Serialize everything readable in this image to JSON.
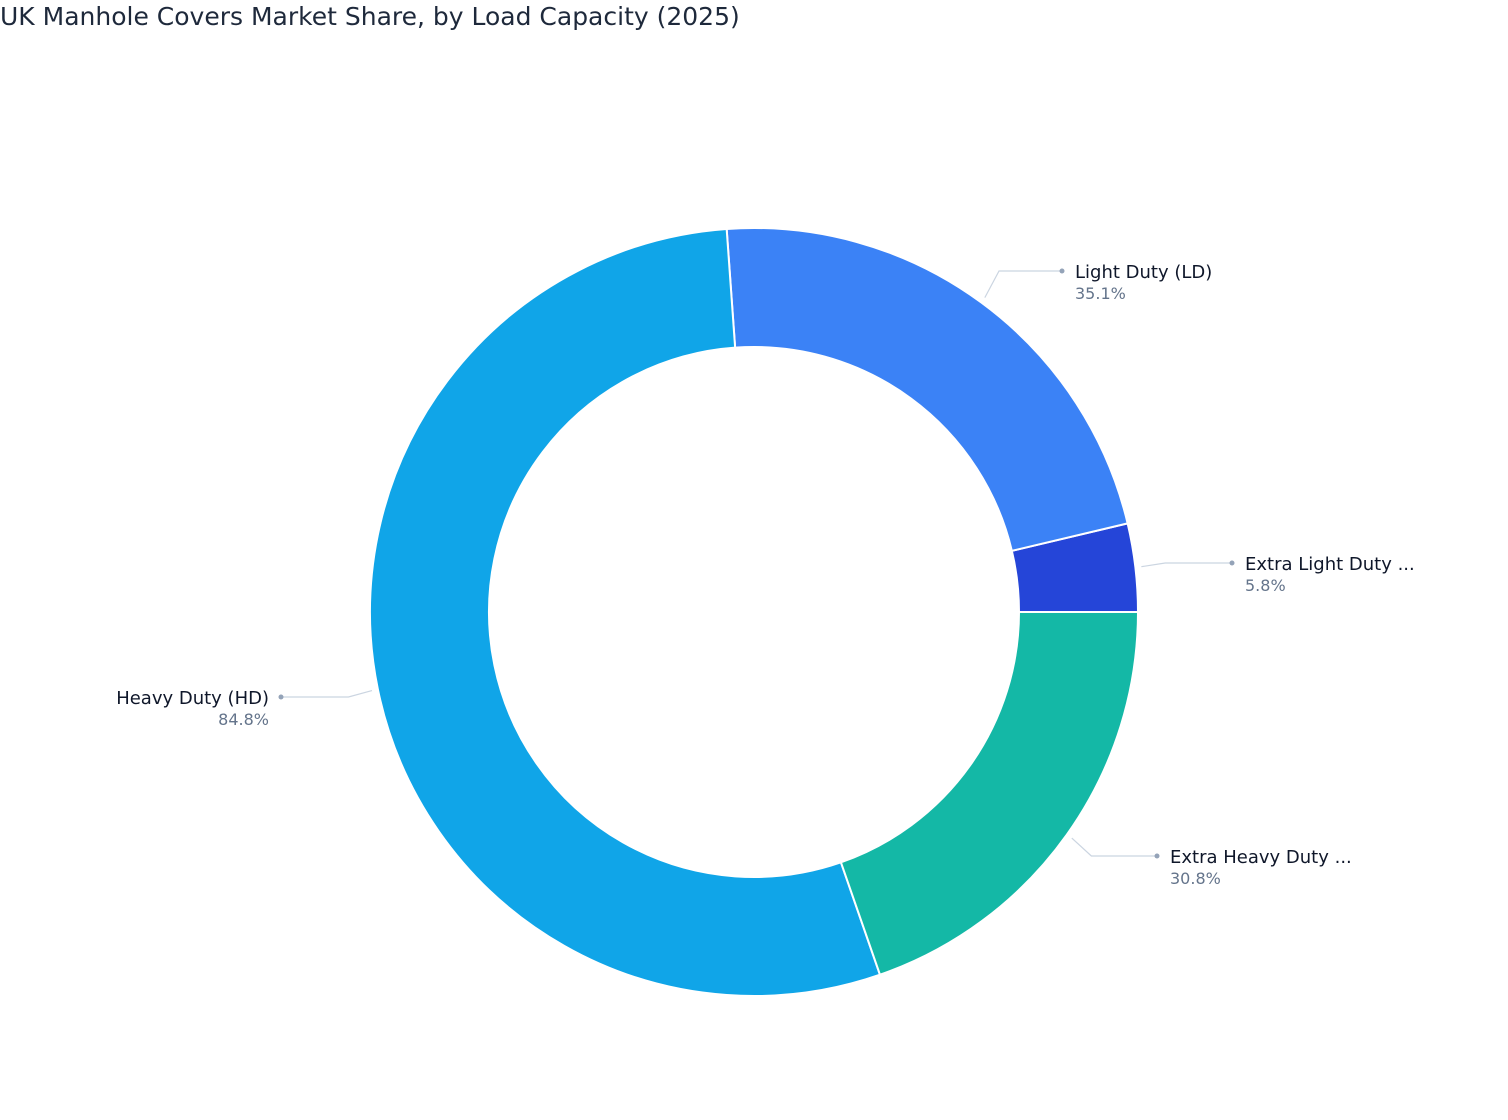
{
  "chart_data": {
    "type": "pie",
    "donut": true,
    "title": "UK Manhole Covers Market Share, by Load Capacity (2025)",
    "slices": [
      {
        "label": "Extra Light Duty ...",
        "value": 5.8,
        "value_label": "5.8%",
        "color": "#2545d8"
      },
      {
        "label": "Light Duty (LD)",
        "value": 35.1,
        "value_label": "35.1%",
        "color": "#3b82f6"
      },
      {
        "label": "Heavy Duty (HD)",
        "value": 84.8,
        "value_label": "84.8%",
        "color": "#10a5e8"
      },
      {
        "label": "Extra Heavy Duty ...",
        "value": 30.8,
        "value_label": "30.8%",
        "color": "#14b8a6"
      }
    ],
    "legend": "none"
  }
}
